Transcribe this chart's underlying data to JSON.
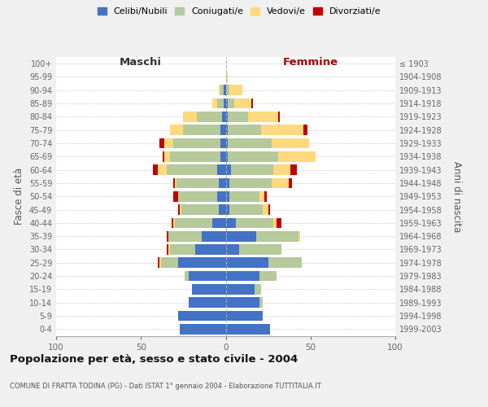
{
  "age_groups": [
    "0-4",
    "5-9",
    "10-14",
    "15-19",
    "20-24",
    "25-29",
    "30-34",
    "35-39",
    "40-44",
    "45-49",
    "50-54",
    "55-59",
    "60-64",
    "65-69",
    "70-74",
    "75-79",
    "80-84",
    "85-89",
    "90-94",
    "95-99",
    "100+"
  ],
  "birth_years": [
    "1999-2003",
    "1994-1998",
    "1989-1993",
    "1984-1988",
    "1979-1983",
    "1974-1978",
    "1969-1973",
    "1964-1968",
    "1959-1963",
    "1954-1958",
    "1949-1953",
    "1944-1948",
    "1939-1943",
    "1934-1938",
    "1929-1933",
    "1924-1928",
    "1919-1923",
    "1914-1918",
    "1909-1913",
    "1904-1908",
    "≤ 1903"
  ],
  "maschi": {
    "celibi": [
      27,
      28,
      22,
      20,
      22,
      28,
      18,
      14,
      8,
      4,
      5,
      4,
      5,
      3,
      3,
      3,
      2,
      1,
      1,
      0,
      0
    ],
    "coniugati": [
      0,
      0,
      0,
      0,
      2,
      10,
      15,
      20,
      22,
      22,
      23,
      25,
      30,
      30,
      28,
      22,
      15,
      4,
      2,
      0,
      0
    ],
    "vedovi": [
      0,
      0,
      0,
      0,
      0,
      1,
      1,
      0,
      1,
      1,
      0,
      1,
      5,
      3,
      5,
      8,
      8,
      3,
      1,
      0,
      0
    ],
    "divorziati": [
      0,
      0,
      0,
      0,
      0,
      1,
      1,
      1,
      1,
      1,
      3,
      1,
      3,
      1,
      3,
      0,
      0,
      0,
      0,
      0,
      0
    ]
  },
  "femmine": {
    "nubili": [
      26,
      22,
      20,
      17,
      20,
      25,
      8,
      18,
      6,
      2,
      2,
      2,
      3,
      1,
      1,
      1,
      1,
      1,
      0,
      0,
      0
    ],
    "coniugate": [
      0,
      0,
      2,
      4,
      10,
      20,
      25,
      25,
      22,
      20,
      18,
      25,
      25,
      30,
      26,
      20,
      12,
      4,
      2,
      0,
      0
    ],
    "vedove": [
      0,
      0,
      0,
      0,
      0,
      0,
      0,
      1,
      2,
      3,
      3,
      10,
      10,
      22,
      22,
      25,
      18,
      10,
      8,
      1,
      0
    ],
    "divorziate": [
      0,
      0,
      0,
      0,
      0,
      0,
      0,
      0,
      3,
      1,
      1,
      2,
      4,
      0,
      0,
      2,
      1,
      1,
      0,
      0,
      0
    ]
  },
  "colors": {
    "celibi": "#4472C4",
    "coniugati": "#B5C99A",
    "vedovi": "#FFD97D",
    "divorziati": "#C00000"
  },
  "xlim": 100,
  "title": "Popolazione per età, sesso e stato civile - 2004",
  "subtitle": "COMUNE DI FRATTA TODINA (PG) - Dati ISTAT 1° gennaio 2004 - Elaborazione TUTTITALIA.IT",
  "ylabel_left": "Fasce di età",
  "ylabel_right": "Anni di nascita",
  "xlabel_left": "Maschi",
  "xlabel_right": "Femmine",
  "bg_color": "#f0f0f0",
  "plot_bg_color": "#ffffff"
}
